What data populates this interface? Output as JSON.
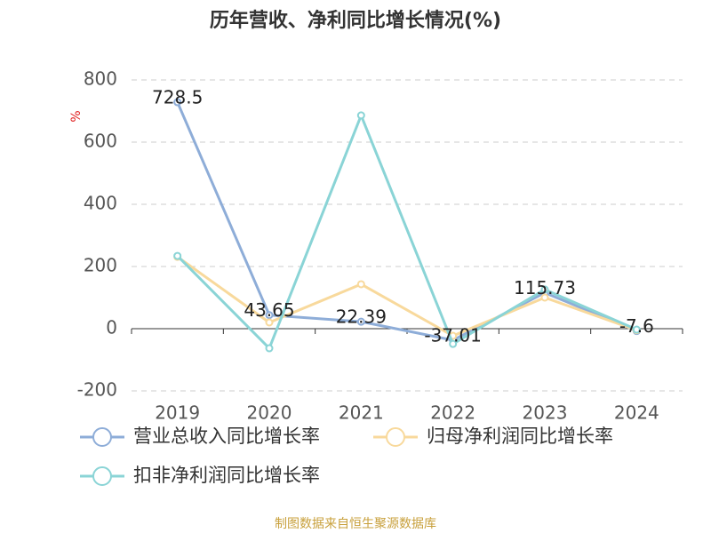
{
  "chart_data": {
    "type": "line",
    "title": "历年营收、净利同比增长情况(%)",
    "y_label": "%",
    "source": "制图数据来自恒生聚源数据库",
    "categories": [
      "2019",
      "2020",
      "2021",
      "2022",
      "2023",
      "2024"
    ],
    "series": [
      {
        "name": "营业总收入同比增长率",
        "color": "#8eadd8",
        "values": [
          728.5,
          43.65,
          22.39,
          -37.01,
          115.73,
          -7.6
        ]
      },
      {
        "name": "归母净利润同比增长率",
        "color": "#f8d99c",
        "values": [
          231,
          20,
          143,
          -23,
          100,
          -5
        ]
      },
      {
        "name": "扣非净利润同比增长率",
        "color": "#8ad4d6",
        "values": [
          234,
          -63,
          686,
          -49,
          126,
          -3
        ]
      }
    ],
    "labeled_series": 0,
    "ylim": [
      -200,
      800
    ],
    "yticks": [
      800,
      600,
      400,
      200,
      0,
      -200
    ],
    "grid": true
  }
}
